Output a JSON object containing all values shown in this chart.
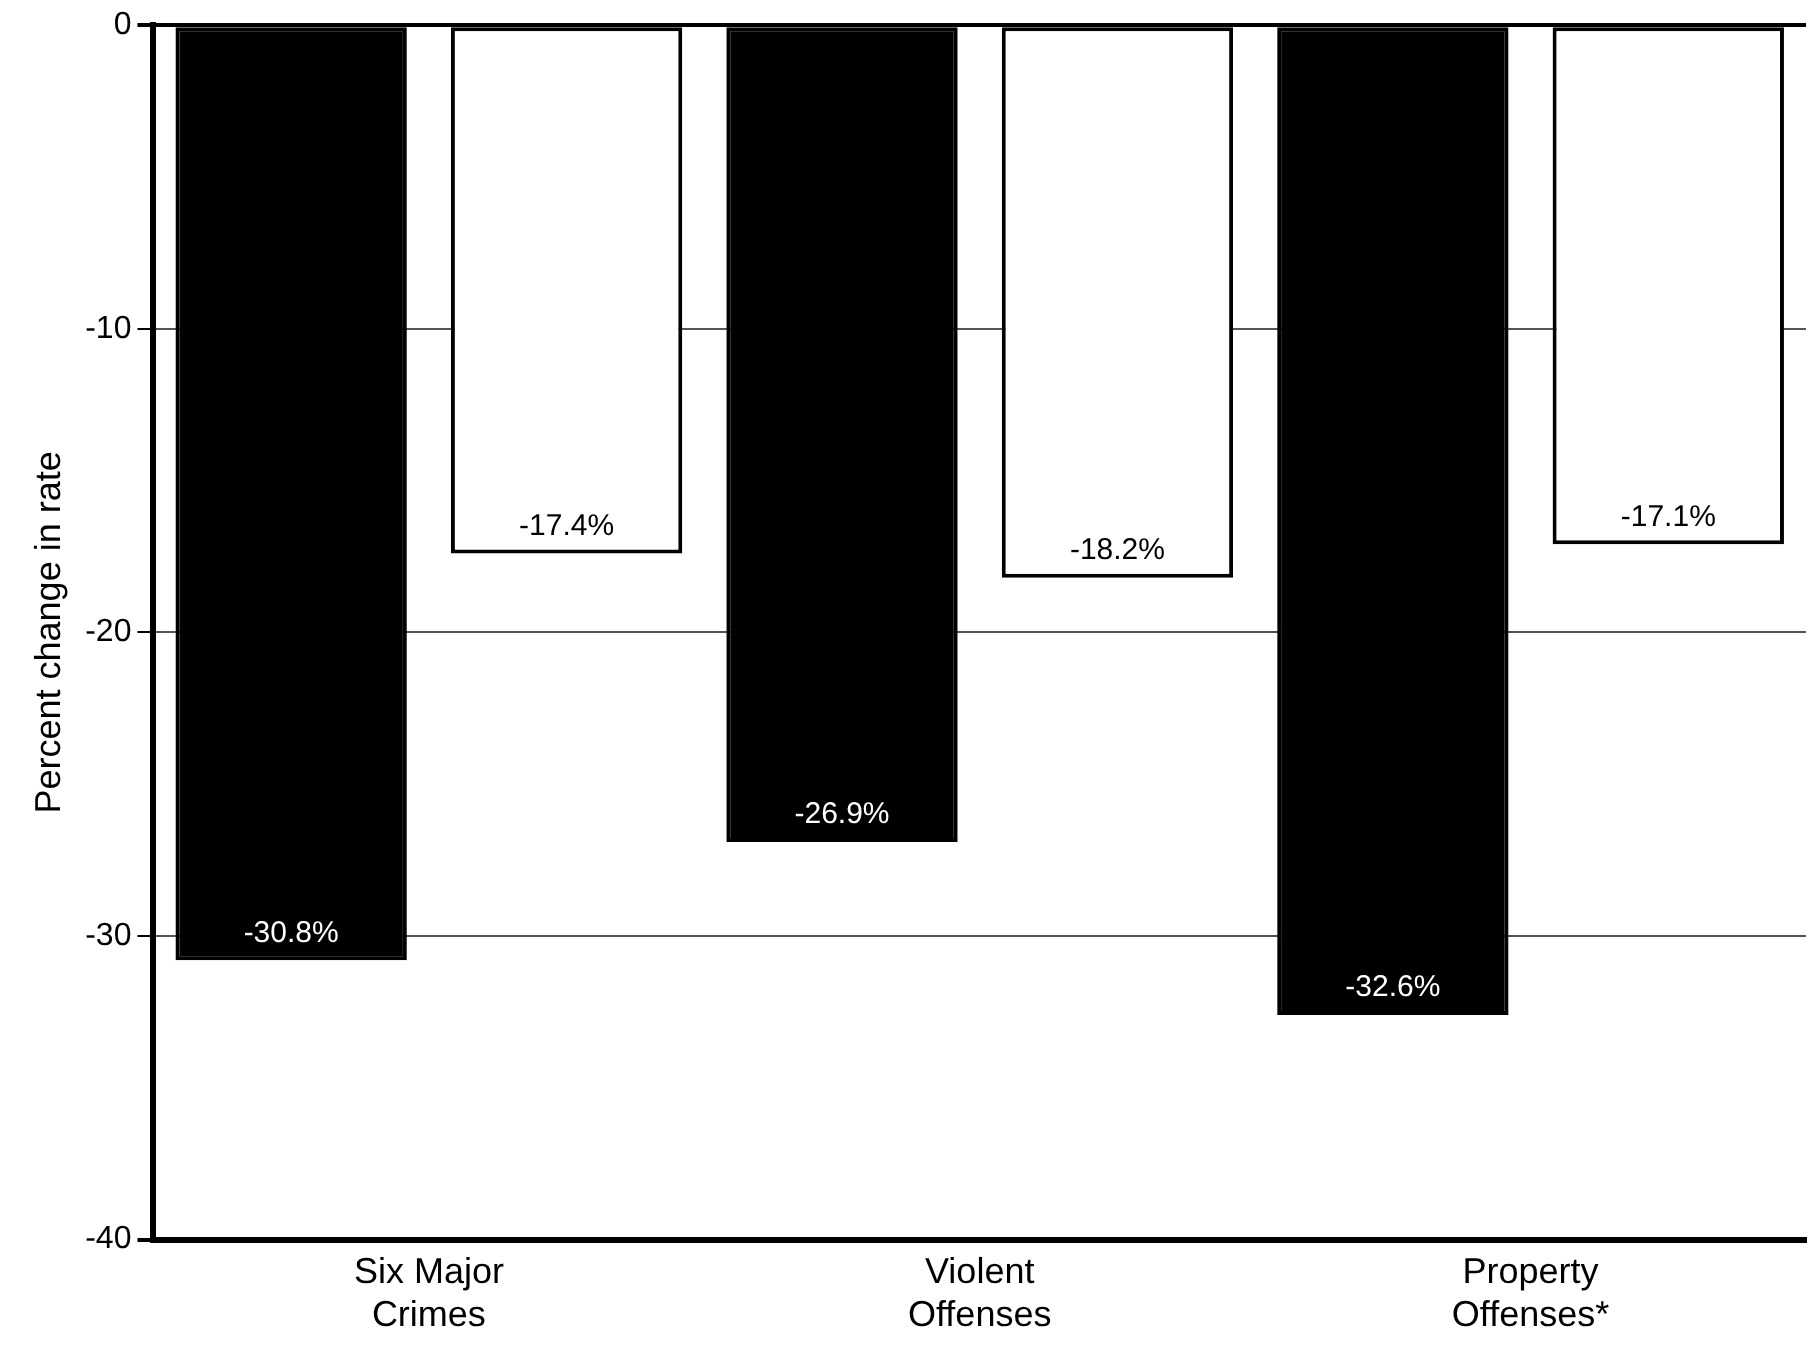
{
  "chart_data": {
    "type": "bar",
    "ylabel": "Percent change in rate",
    "categories": [
      "Six Major Crimes",
      "Violent Offenses",
      "Property Offenses*"
    ],
    "series": [
      {
        "color": "#000000",
        "values": [
          -30.8,
          -26.9,
          -32.6
        ],
        "value_labels": [
          "-30.8%",
          "-26.9%",
          "-32.6%"
        ]
      },
      {
        "color": "#ffffff",
        "values": [
          -17.4,
          -18.2,
          -17.1
        ],
        "value_labels": [
          "-17.4%",
          "-18.2%",
          "-17.1%"
        ]
      }
    ],
    "ylim": [
      -40,
      0
    ],
    "yticks": [
      0,
      -10,
      -20,
      -30,
      -40
    ],
    "grid": "y",
    "legend": false
  }
}
